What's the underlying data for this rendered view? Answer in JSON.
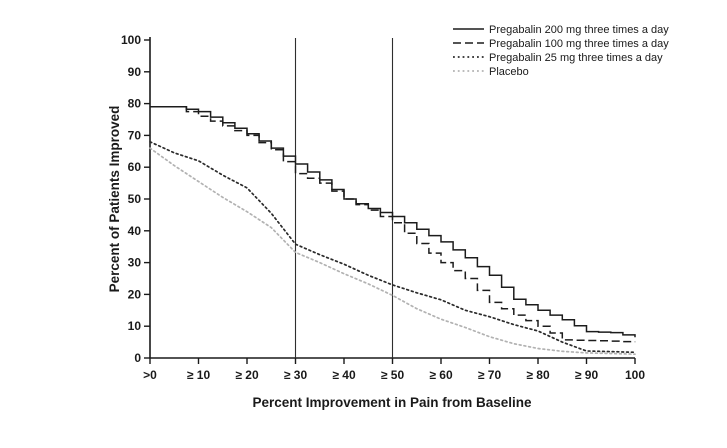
{
  "figure": {
    "description": "Line chart of percent of patients improved versus percent improvement in pain from baseline, four treatment arms, with reference lines at 30% and 50% improvement"
  },
  "chart_data": {
    "type": "line",
    "title": "",
    "xlabel": "Percent Improvement in Pain from Baseline",
    "ylabel": "Percent of Patients Improved",
    "xlim": [
      0,
      100
    ],
    "ylim": [
      0,
      100
    ],
    "grid": false,
    "legend_position": "top-right",
    "x_ticks": [
      0,
      10,
      20,
      30,
      40,
      50,
      60,
      70,
      80,
      90,
      100
    ],
    "x_tick_labels": [
      ">0",
      "≥ 10",
      "≥ 20",
      "≥ 30",
      "≥ 40",
      "≥ 50",
      "≥ 60",
      "≥ 70",
      "≥ 80",
      "≥ 90",
      "100"
    ],
    "y_ticks": [
      0,
      10,
      20,
      30,
      40,
      50,
      60,
      70,
      80,
      90,
      100
    ],
    "reference_lines_x": [
      30,
      50
    ],
    "x": [
      0,
      5,
      10,
      15,
      20,
      25,
      30,
      35,
      40,
      45,
      50,
      55,
      60,
      65,
      70,
      75,
      80,
      85,
      90,
      95,
      100
    ],
    "series": [
      {
        "name": "Pregabalin 200 mg three times a day",
        "style": "solid",
        "color": "#1c1c1c",
        "values": [
          79,
          79,
          77.5,
          74,
          70.5,
          66,
          61,
          56,
          50,
          47,
          44.5,
          40.5,
          36.5,
          31.5,
          26,
          18.5,
          15,
          12,
          8.3,
          8,
          6.5
        ]
      },
      {
        "name": "Pregabalin 100 mg three times a day",
        "style": "dashed",
        "color": "#1c1c1c",
        "values": [
          79,
          79,
          76,
          73,
          70,
          65.5,
          58,
          55,
          50,
          46.5,
          42.5,
          36,
          30,
          25,
          17.5,
          13.5,
          10,
          5.7,
          5.5,
          5.3,
          5
        ]
      },
      {
        "name": "Pregabalin 25 mg three times a day",
        "style": "dotted",
        "color": "#2b2b2b",
        "values": [
          68,
          64.5,
          62,
          57.5,
          53.5,
          45.5,
          35.8,
          32.5,
          29.5,
          26,
          23,
          20.5,
          18.3,
          15,
          13,
          10.5,
          8.5,
          5,
          2.2,
          2,
          1.8
        ]
      },
      {
        "name": "Placebo",
        "style": "dotted",
        "color": "#b2b2b2",
        "values": [
          66,
          60.5,
          55.5,
          50.5,
          46,
          41,
          33.2,
          30,
          26.5,
          23.3,
          19.7,
          15.5,
          12.2,
          9.6,
          6.7,
          4.5,
          3,
          2.1,
          1.6,
          1.4,
          1.2
        ]
      }
    ]
  }
}
